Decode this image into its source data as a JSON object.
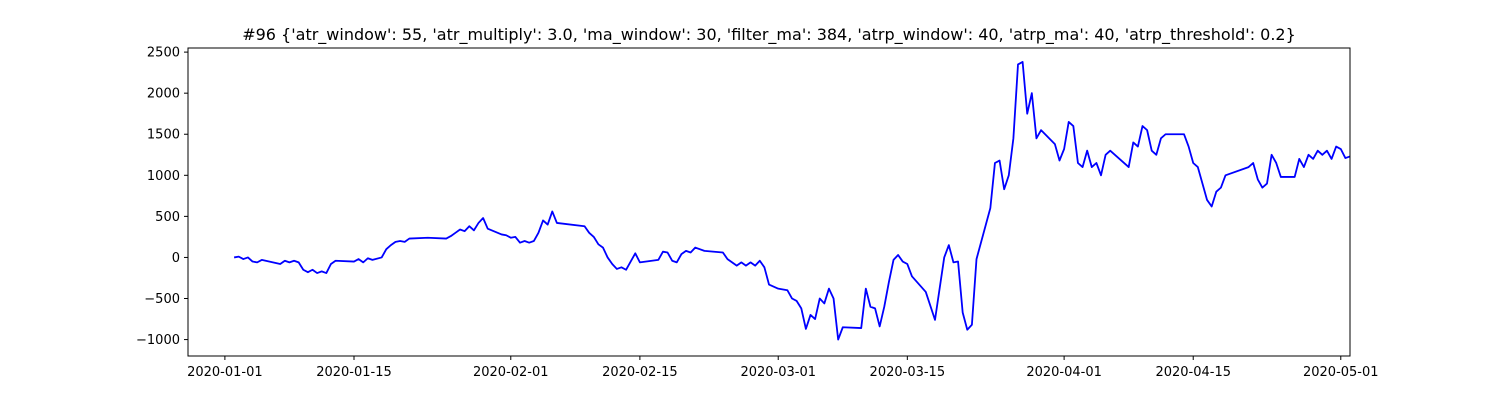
{
  "chart_data": {
    "type": "line",
    "title": "#96 {'atr_window': 55, 'atr_multiply': 3.0, 'ma_window': 30, 'filter_ma': 384, 'atrp_window': 40, 'atrp_ma': 40, 'atrp_threshold': 0.2}",
    "xlabel": "",
    "ylabel": "",
    "xlim": [
      "2019-12-28",
      "2020-05-02"
    ],
    "ylim": [
      -1200,
      2550
    ],
    "x_ticks": [
      "2020-01-01",
      "2020-01-15",
      "2020-02-01",
      "2020-02-15",
      "2020-03-01",
      "2020-03-15",
      "2020-04-01",
      "2020-04-15",
      "2020-05-01"
    ],
    "y_ticks": [
      -1000,
      -500,
      0,
      500,
      1000,
      1500,
      2000,
      2500
    ],
    "grid": false,
    "series": [
      {
        "color": "#0000ff",
        "points": [
          [
            "2020-01-02",
            0
          ],
          [
            "2020-01-02 12:00",
            10
          ],
          [
            "2020-01-03",
            -20
          ],
          [
            "2020-01-03 12:00",
            0
          ],
          [
            "2020-01-04",
            -50
          ],
          [
            "2020-01-04 12:00",
            -60
          ],
          [
            "2020-01-05",
            -30
          ],
          [
            "2020-01-07",
            -80
          ],
          [
            "2020-01-07 12:00",
            -40
          ],
          [
            "2020-01-08",
            -60
          ],
          [
            "2020-01-08 12:00",
            -40
          ],
          [
            "2020-01-09",
            -60
          ],
          [
            "2020-01-09 12:00",
            -150
          ],
          [
            "2020-01-10",
            -180
          ],
          [
            "2020-01-10 12:00",
            -150
          ],
          [
            "2020-01-11",
            -190
          ],
          [
            "2020-01-11 12:00",
            -170
          ],
          [
            "2020-01-12",
            -190
          ],
          [
            "2020-01-12 12:00",
            -80
          ],
          [
            "2020-01-13",
            -40
          ],
          [
            "2020-01-15",
            -50
          ],
          [
            "2020-01-15 12:00",
            -20
          ],
          [
            "2020-01-16",
            -60
          ],
          [
            "2020-01-16 12:00",
            -10
          ],
          [
            "2020-01-17",
            -30
          ],
          [
            "2020-01-18",
            0
          ],
          [
            "2020-01-18 12:00",
            100
          ],
          [
            "2020-01-19",
            150
          ],
          [
            "2020-01-19 12:00",
            190
          ],
          [
            "2020-01-20",
            200
          ],
          [
            "2020-01-20 12:00",
            190
          ],
          [
            "2020-01-21",
            230
          ],
          [
            "2020-01-23",
            240
          ],
          [
            "2020-01-25",
            230
          ],
          [
            "2020-01-25 12:00",
            260
          ],
          [
            "2020-01-26",
            300
          ],
          [
            "2020-01-26 12:00",
            340
          ],
          [
            "2020-01-27",
            320
          ],
          [
            "2020-01-27 12:00",
            380
          ],
          [
            "2020-01-28",
            330
          ],
          [
            "2020-01-28 12:00",
            420
          ],
          [
            "2020-01-29",
            480
          ],
          [
            "2020-01-29 12:00",
            350
          ],
          [
            "2020-01-31",
            280
          ],
          [
            "2020-01-31 12:00",
            270
          ],
          [
            "2020-02-01",
            240
          ],
          [
            "2020-02-01 12:00",
            250
          ],
          [
            "2020-02-02",
            180
          ],
          [
            "2020-02-02 12:00",
            200
          ],
          [
            "2020-02-03",
            180
          ],
          [
            "2020-02-03 12:00",
            200
          ],
          [
            "2020-02-04",
            300
          ],
          [
            "2020-02-04 12:00",
            450
          ],
          [
            "2020-02-05",
            400
          ],
          [
            "2020-02-05 12:00",
            560
          ],
          [
            "2020-02-06",
            420
          ],
          [
            "2020-02-09",
            380
          ],
          [
            "2020-02-09 12:00",
            300
          ],
          [
            "2020-02-10",
            250
          ],
          [
            "2020-02-10 12:00",
            160
          ],
          [
            "2020-02-11",
            120
          ],
          [
            "2020-02-11 12:00",
            0
          ],
          [
            "2020-02-12",
            -80
          ],
          [
            "2020-02-12 12:00",
            -140
          ],
          [
            "2020-02-13",
            -120
          ],
          [
            "2020-02-13 12:00",
            -150
          ],
          [
            "2020-02-14",
            -50
          ],
          [
            "2020-02-14 12:00",
            50
          ],
          [
            "2020-02-15",
            -60
          ],
          [
            "2020-02-17",
            -30
          ],
          [
            "2020-02-17 12:00",
            70
          ],
          [
            "2020-02-18",
            60
          ],
          [
            "2020-02-18 12:00",
            -40
          ],
          [
            "2020-02-19",
            -60
          ],
          [
            "2020-02-19 12:00",
            40
          ],
          [
            "2020-02-20",
            80
          ],
          [
            "2020-02-20 12:00",
            60
          ],
          [
            "2020-02-21",
            120
          ],
          [
            "2020-02-22",
            80
          ],
          [
            "2020-02-24",
            60
          ],
          [
            "2020-02-24 12:00",
            -20
          ],
          [
            "2020-02-25",
            -60
          ],
          [
            "2020-02-25 12:00",
            -100
          ],
          [
            "2020-02-26",
            -60
          ],
          [
            "2020-02-26 12:00",
            -100
          ],
          [
            "2020-02-27",
            -60
          ],
          [
            "2020-02-27 12:00",
            -100
          ],
          [
            "2020-02-28",
            -40
          ],
          [
            "2020-02-28 12:00",
            -120
          ],
          [
            "2020-02-29",
            -330
          ],
          [
            "2020-03-01",
            -380
          ],
          [
            "2020-03-02",
            -400
          ],
          [
            "2020-03-02 12:00",
            -500
          ],
          [
            "2020-03-03",
            -530
          ],
          [
            "2020-03-03 12:00",
            -620
          ],
          [
            "2020-03-04",
            -870
          ],
          [
            "2020-03-04 12:00",
            -700
          ],
          [
            "2020-03-05",
            -750
          ],
          [
            "2020-03-05 12:00",
            -500
          ],
          [
            "2020-03-06",
            -560
          ],
          [
            "2020-03-06 12:00",
            -380
          ],
          [
            "2020-03-07",
            -500
          ],
          [
            "2020-03-07 12:00",
            -1000
          ],
          [
            "2020-03-08",
            -850
          ],
          [
            "2020-03-10",
            -860
          ],
          [
            "2020-03-10 12:00",
            -380
          ],
          [
            "2020-03-11",
            -600
          ],
          [
            "2020-03-11 12:00",
            -620
          ],
          [
            "2020-03-12",
            -840
          ],
          [
            "2020-03-12 12:00",
            -600
          ],
          [
            "2020-03-13",
            -300
          ],
          [
            "2020-03-13 12:00",
            -30
          ],
          [
            "2020-03-14",
            30
          ],
          [
            "2020-03-14 12:00",
            -50
          ],
          [
            "2020-03-15",
            -80
          ],
          [
            "2020-03-15 12:00",
            -230
          ],
          [
            "2020-03-17",
            -420
          ],
          [
            "2020-03-18",
            -760
          ],
          [
            "2020-03-18 12:00",
            -380
          ],
          [
            "2020-03-19",
            0
          ],
          [
            "2020-03-19 12:00",
            150
          ],
          [
            "2020-03-20",
            -60
          ],
          [
            "2020-03-20 12:00",
            -50
          ],
          [
            "2020-03-21",
            -670
          ],
          [
            "2020-03-21 12:00",
            -880
          ],
          [
            "2020-03-22",
            -820
          ],
          [
            "2020-03-22 12:00",
            -20
          ],
          [
            "2020-03-24",
            600
          ],
          [
            "2020-03-24 12:00",
            1150
          ],
          [
            "2020-03-25",
            1180
          ],
          [
            "2020-03-25 12:00",
            830
          ],
          [
            "2020-03-26",
            1000
          ],
          [
            "2020-03-26 12:00",
            1450
          ],
          [
            "2020-03-27",
            2350
          ],
          [
            "2020-03-27 12:00",
            2380
          ],
          [
            "2020-03-28",
            1750
          ],
          [
            "2020-03-28 12:00",
            2000
          ],
          [
            "2020-03-29",
            1450
          ],
          [
            "2020-03-29 12:00",
            1550
          ],
          [
            "2020-03-31",
            1380
          ],
          [
            "2020-03-31 12:00",
            1180
          ],
          [
            "2020-04-01",
            1320
          ],
          [
            "2020-04-01 12:00",
            1650
          ],
          [
            "2020-04-02",
            1600
          ],
          [
            "2020-04-02 12:00",
            1150
          ],
          [
            "2020-04-03",
            1100
          ],
          [
            "2020-04-03 12:00",
            1300
          ],
          [
            "2020-04-04",
            1100
          ],
          [
            "2020-04-04 12:00",
            1150
          ],
          [
            "2020-04-05",
            1000
          ],
          [
            "2020-04-05 12:00",
            1250
          ],
          [
            "2020-04-06",
            1300
          ],
          [
            "2020-04-08",
            1100
          ],
          [
            "2020-04-08 12:00",
            1400
          ],
          [
            "2020-04-09",
            1350
          ],
          [
            "2020-04-09 12:00",
            1600
          ],
          [
            "2020-04-10",
            1550
          ],
          [
            "2020-04-10 12:00",
            1300
          ],
          [
            "2020-04-11",
            1250
          ],
          [
            "2020-04-11 12:00",
            1450
          ],
          [
            "2020-04-12",
            1500
          ],
          [
            "2020-04-14",
            1500
          ],
          [
            "2020-04-14 12:00",
            1350
          ],
          [
            "2020-04-15",
            1150
          ],
          [
            "2020-04-15 12:00",
            1100
          ],
          [
            "2020-04-16",
            900
          ],
          [
            "2020-04-16 12:00",
            700
          ],
          [
            "2020-04-17",
            620
          ],
          [
            "2020-04-17 12:00",
            800
          ],
          [
            "2020-04-18",
            850
          ],
          [
            "2020-04-18 12:00",
            1000
          ],
          [
            "2020-04-21",
            1100
          ],
          [
            "2020-04-21 12:00",
            1150
          ],
          [
            "2020-04-22",
            950
          ],
          [
            "2020-04-22 12:00",
            850
          ],
          [
            "2020-04-23",
            900
          ],
          [
            "2020-04-23 12:00",
            1250
          ],
          [
            "2020-04-24",
            1150
          ],
          [
            "2020-04-24 12:00",
            980
          ],
          [
            "2020-04-26",
            980
          ],
          [
            "2020-04-26 12:00",
            1200
          ],
          [
            "2020-04-27",
            1100
          ],
          [
            "2020-04-27 12:00",
            1250
          ],
          [
            "2020-04-28",
            1200
          ],
          [
            "2020-04-28 12:00",
            1300
          ],
          [
            "2020-04-29",
            1250
          ],
          [
            "2020-04-29 12:00",
            1300
          ],
          [
            "2020-04-30",
            1200
          ],
          [
            "2020-04-30 12:00",
            1350
          ],
          [
            "2020-05-01",
            1320
          ],
          [
            "2020-05-01 12:00",
            1210
          ],
          [
            "2020-05-02",
            1230
          ]
        ]
      }
    ]
  }
}
